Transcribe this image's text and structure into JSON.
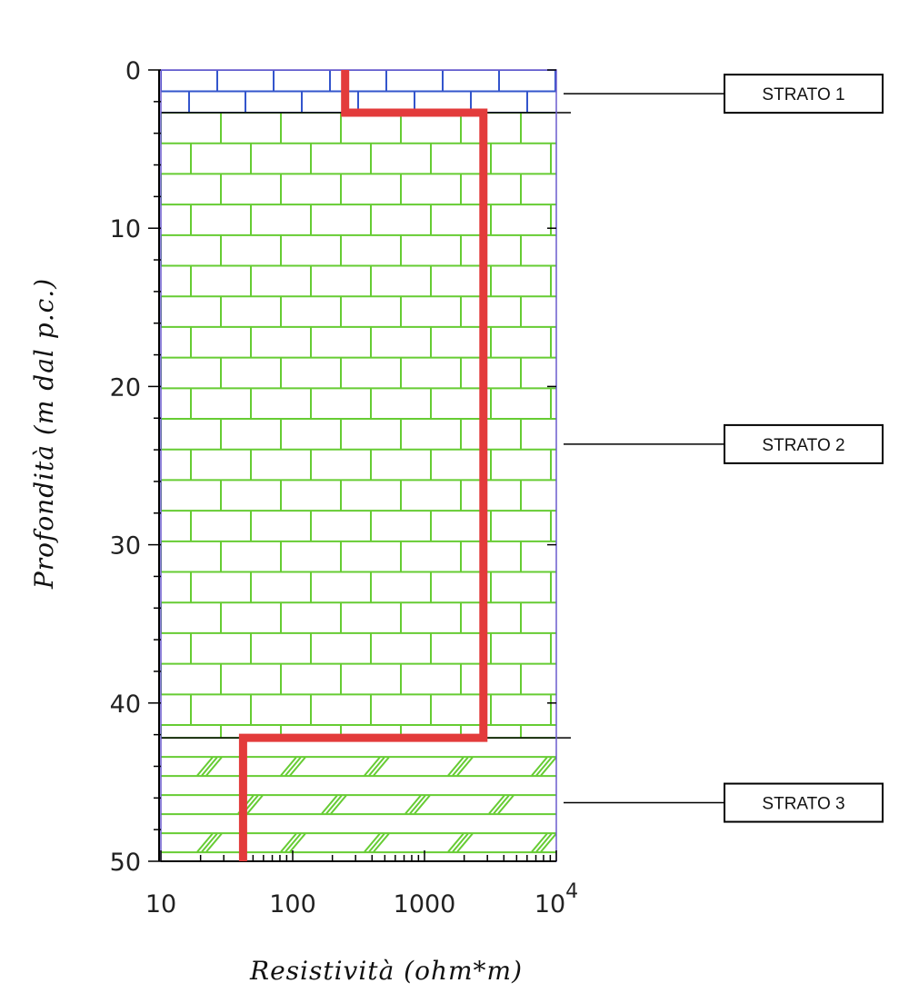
{
  "chart_data": {
    "type": "line",
    "xlabel": "Resistività (ohm*m)",
    "ylabel": "Profondità (m dal p.c.)",
    "x_scale": "log",
    "xlim": [
      10,
      10000
    ],
    "ylim": [
      0,
      50
    ],
    "y_inverted": true,
    "x_ticks": [
      {
        "value": 10,
        "label": "10"
      },
      {
        "value": 100,
        "label": "100"
      },
      {
        "value": 1000,
        "label": "1000"
      },
      {
        "value": 10000,
        "label": "10",
        "exponent": "4"
      }
    ],
    "y_ticks": [
      {
        "value": 0,
        "label": "0"
      },
      {
        "value": 10,
        "label": "10"
      },
      {
        "value": 20,
        "label": "20"
      },
      {
        "value": 30,
        "label": "30"
      },
      {
        "value": 40,
        "label": "40"
      },
      {
        "value": 50,
        "label": "50"
      }
    ],
    "series": [
      {
        "color": "#e33b3b",
        "points": [
          {
            "resistivity": 250,
            "depth": 0
          },
          {
            "resistivity": 250,
            "depth": 2.7
          },
          {
            "resistivity": 2800,
            "depth": 2.7
          },
          {
            "resistivity": 2800,
            "depth": 42.2
          },
          {
            "resistivity": 42,
            "depth": 42.2
          },
          {
            "resistivity": 42,
            "depth": 50
          }
        ]
      }
    ],
    "layers": [
      {
        "label": "STRATO 1",
        "top": 0,
        "bottom": 2.7,
        "pattern": "bricks-blue",
        "color": "#3355cc",
        "label_depth": 1.5
      },
      {
        "label": "STRATO 2",
        "top": 2.7,
        "bottom": 42.2,
        "pattern": "bricks-green",
        "color": "#66cc33",
        "label_depth": 23.3
      },
      {
        "label": "STRATO 3",
        "top": 42.2,
        "bottom": 50,
        "pattern": "hatched-green",
        "color": "#66cc33",
        "label_depth": 46.3
      }
    ],
    "grid": false,
    "legend": "none"
  }
}
